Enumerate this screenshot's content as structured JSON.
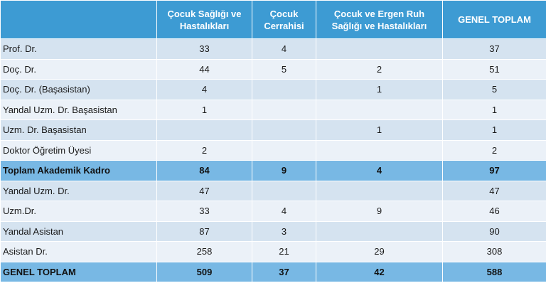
{
  "table": {
    "headers": [
      "",
      "Çocuk Sağlığı ve Hastalıkları",
      "Çocuk Cerrahisi",
      "Çocuk ve Ergen Ruh Sağlığı ve Hastalıkları",
      "GENEL TOPLAM"
    ],
    "rows": [
      {
        "label": "Prof. Dr.",
        "values": [
          "33",
          "4",
          "",
          "37"
        ],
        "total": false
      },
      {
        "label": "Doç. Dr.",
        "values": [
          "44",
          "5",
          "2",
          "51"
        ],
        "total": false
      },
      {
        "label": "Doç. Dr. (Başasistan)",
        "values": [
          "4",
          "",
          "1",
          "5"
        ],
        "total": false
      },
      {
        "label": "Yandal Uzm. Dr. Başasistan",
        "values": [
          "1",
          "",
          "",
          "1"
        ],
        "total": false
      },
      {
        "label": "Uzm. Dr. Başasistan",
        "values": [
          "",
          "",
          "1",
          "1"
        ],
        "total": false
      },
      {
        "label": "Doktor Öğretim Üyesi",
        "values": [
          "2",
          "",
          "",
          "2"
        ],
        "total": false
      },
      {
        "label": "Toplam Akademik Kadro",
        "values": [
          "84",
          "9",
          "4",
          "97"
        ],
        "total": true
      },
      {
        "label": "Yandal Uzm. Dr.",
        "values": [
          "47",
          "",
          "",
          "47"
        ],
        "total": false
      },
      {
        "label": "Uzm.Dr.",
        "values": [
          "33",
          "4",
          "9",
          "46"
        ],
        "total": false
      },
      {
        "label": "Yandal Asistan",
        "values": [
          "87",
          "3",
          "",
          "90"
        ],
        "total": false
      },
      {
        "label": "Asistan Dr.",
        "values": [
          "258",
          "21",
          "29",
          "308"
        ],
        "total": false
      },
      {
        "label": "GENEL TOPLAM",
        "values": [
          "509",
          "37",
          "42",
          "588"
        ],
        "total": true
      }
    ]
  },
  "colors": {
    "header": "#3d9bd3",
    "row_odd": "#d5e3f0",
    "row_even": "#ebf1f8",
    "total_row": "#78b8e4"
  }
}
